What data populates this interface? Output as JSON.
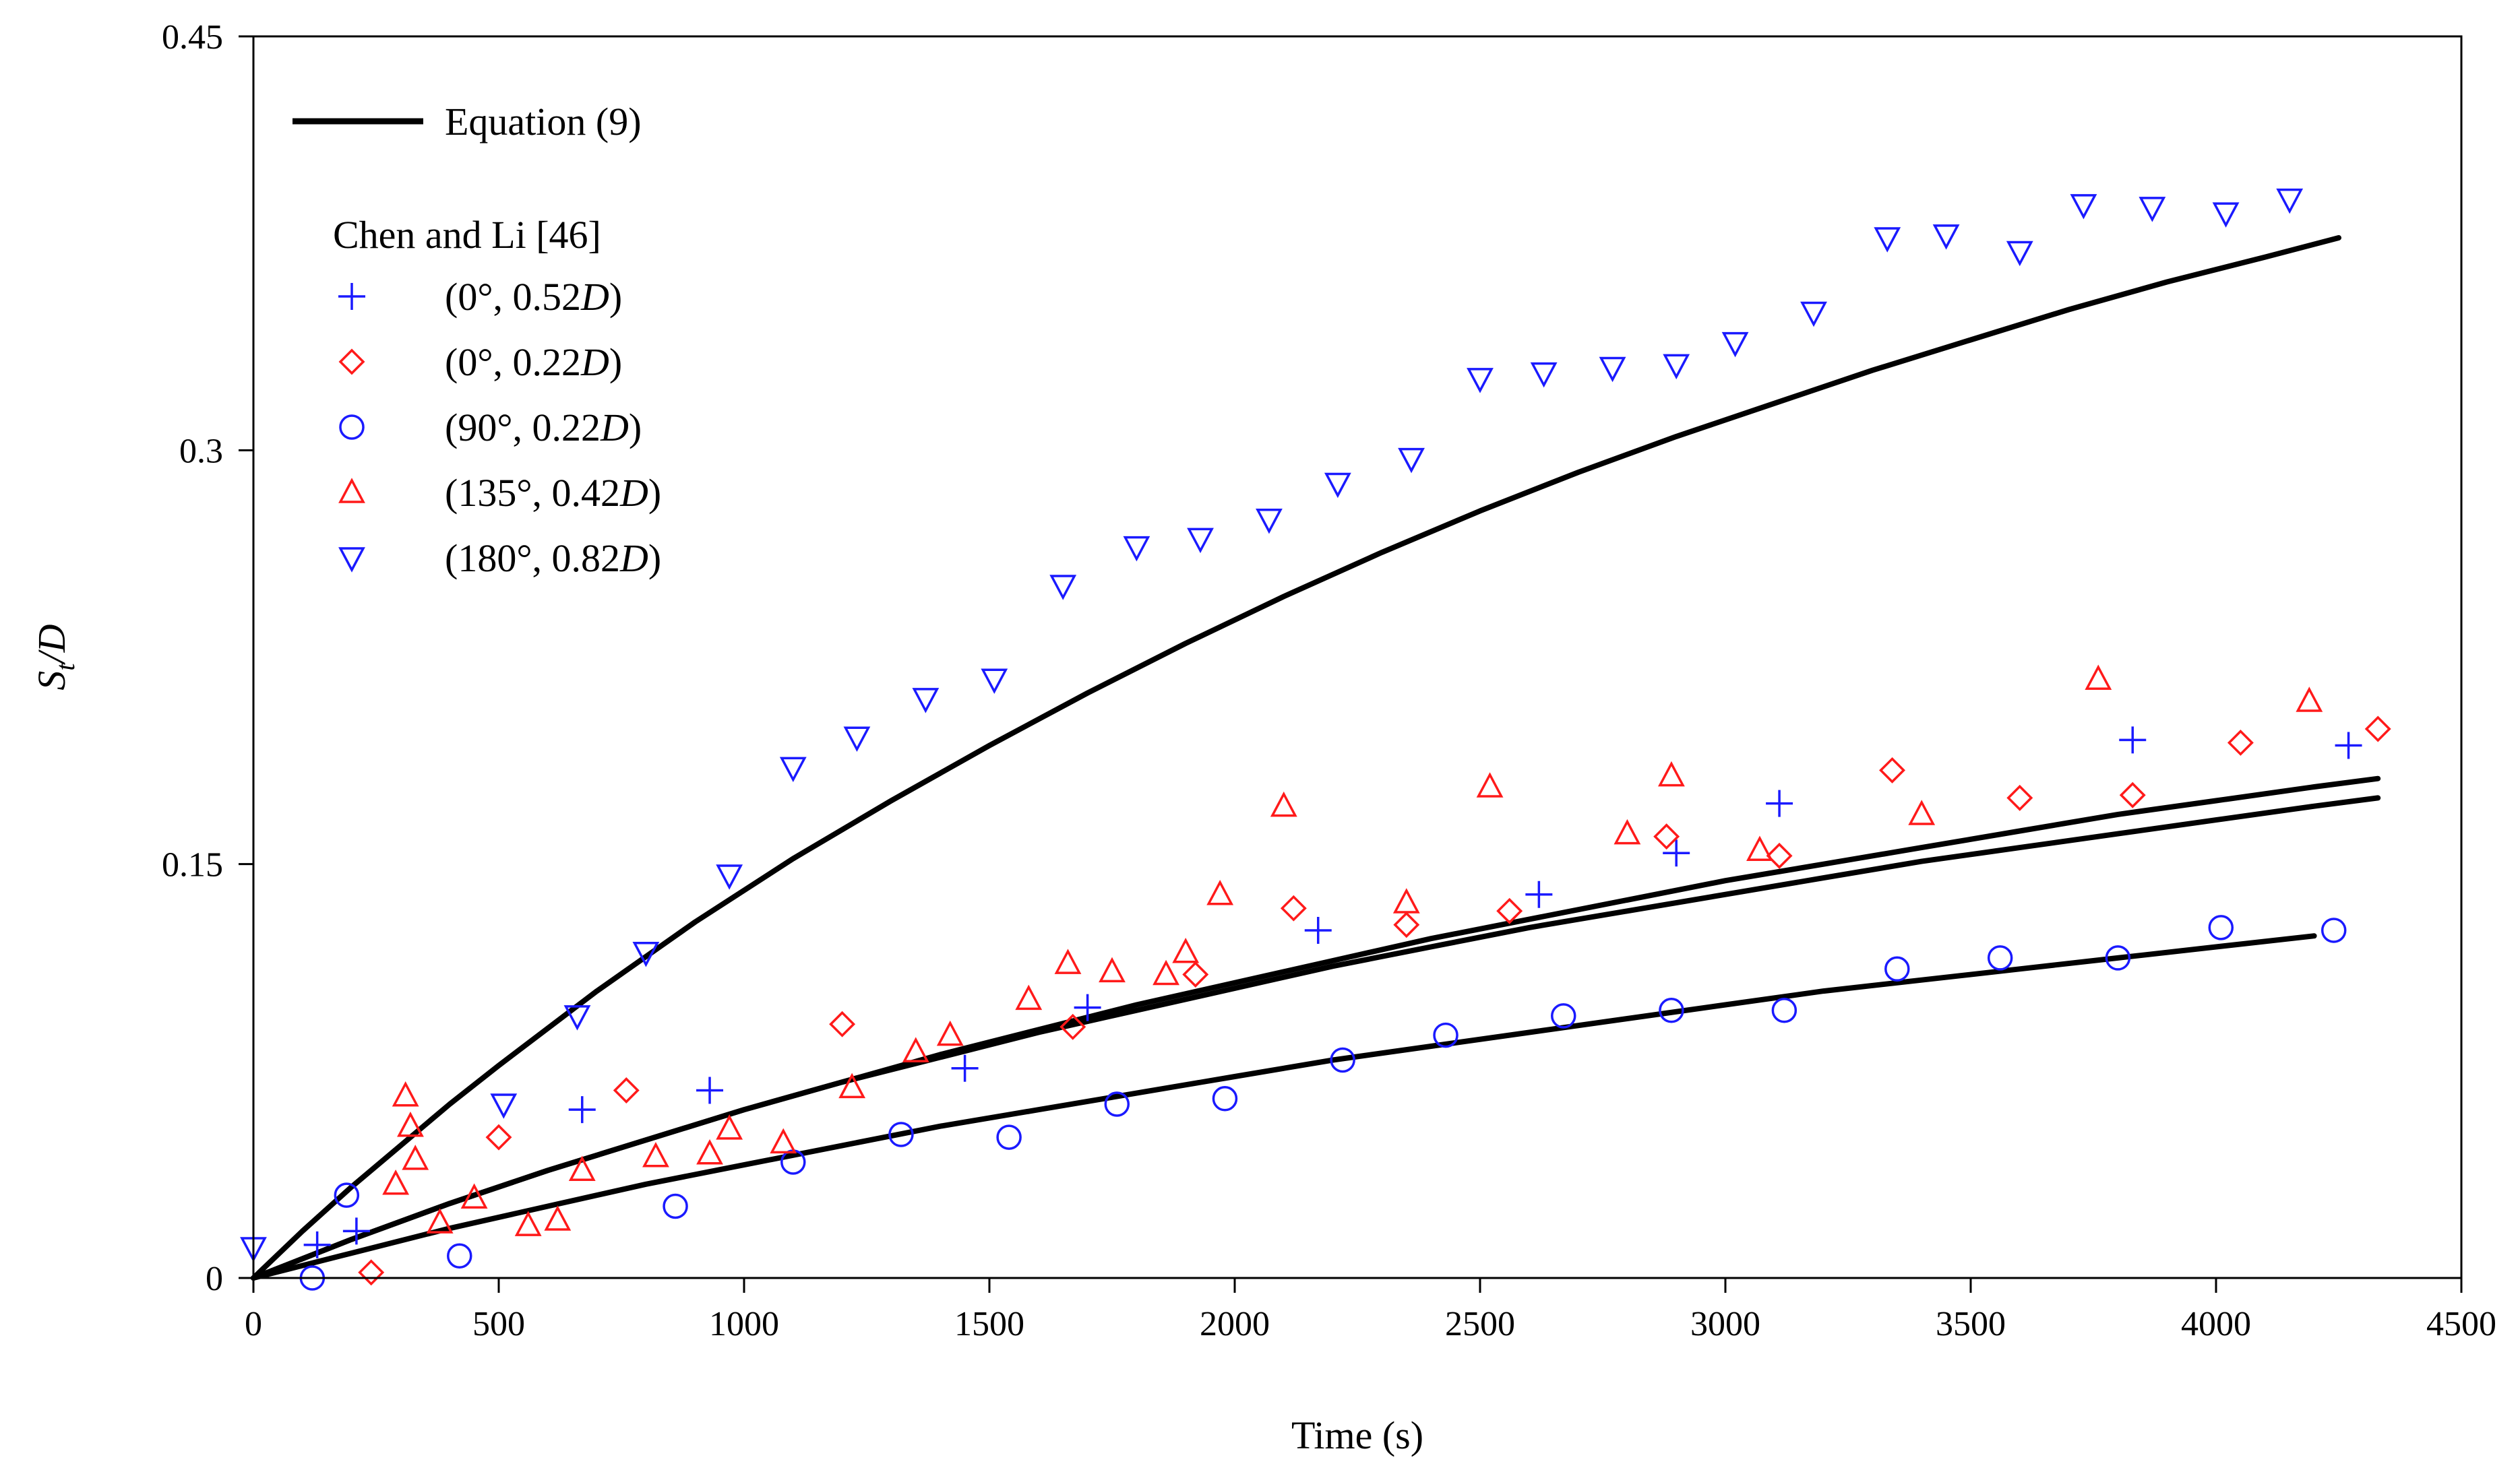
{
  "chart_data": {
    "type": "scatter",
    "title": "",
    "xlabel": "Time (s)",
    "ylabel": {
      "main": "S",
      "sub": "t",
      "tail": "/D"
    },
    "xlim": [
      0,
      4500
    ],
    "ylim": [
      0,
      0.45
    ],
    "xticks": [
      0,
      500,
      1000,
      1500,
      2000,
      2500,
      3000,
      3500,
      4000,
      4500
    ],
    "xtick_labels": [
      "0",
      "500",
      "1000",
      "1500",
      "2000",
      "2500",
      "3000",
      "3500",
      "4000",
      "4500"
    ],
    "yticks": [
      0,
      0.15,
      0.3,
      0.45
    ],
    "ytick_labels": [
      "0",
      "0.15",
      "0.3",
      "0.45"
    ],
    "legend_position": "top-left",
    "line_legend": "Equation (9)",
    "scatter_legend_title": "Chen and Li [46]",
    "colors": {
      "blue": "#1a1aff",
      "red": "#ff1a1a",
      "black": "#000000"
    },
    "lines": [
      {
        "name": "Equation (9) — 180°, 0.82D",
        "x": [
          0,
          100,
          200,
          300,
          400,
          500,
          700,
          900,
          1100,
          1300,
          1500,
          1700,
          1900,
          2100,
          2300,
          2500,
          2700,
          2900,
          3100,
          3300,
          3500,
          3700,
          3900,
          4100,
          4250
        ],
        "y": [
          0,
          0.017,
          0.033,
          0.048,
          0.063,
          0.077,
          0.104,
          0.129,
          0.152,
          0.173,
          0.193,
          0.212,
          0.23,
          0.247,
          0.263,
          0.278,
          0.292,
          0.305,
          0.317,
          0.329,
          0.34,
          0.351,
          0.361,
          0.37,
          0.377
        ]
      },
      {
        "name": "Equation (9) — 0°, 0.52D",
        "x": [
          0,
          200,
          400,
          600,
          800,
          1000,
          1200,
          1400,
          1600,
          1800,
          2000,
          2200,
          2400,
          2600,
          2800,
          3000,
          3200,
          3400,
          3600,
          3800,
          4000,
          4200,
          4330
        ],
        "y": [
          0,
          0.014,
          0.027,
          0.039,
          0.05,
          0.061,
          0.071,
          0.081,
          0.09,
          0.099,
          0.107,
          0.115,
          0.123,
          0.13,
          0.137,
          0.144,
          0.15,
          0.156,
          0.162,
          0.168,
          0.173,
          0.178,
          0.181
        ]
      },
      {
        "name": "Equation (9) — 0°, 0.22D",
        "x": [
          0,
          200,
          400,
          600,
          800,
          1000,
          1200,
          1400,
          1600,
          1800,
          2000,
          2200,
          2400,
          2600,
          2800,
          3000,
          3200,
          3400,
          3600,
          3800,
          4000,
          4200,
          4330
        ],
        "y": [
          0,
          0.014,
          0.027,
          0.039,
          0.05,
          0.061,
          0.071,
          0.08,
          0.089,
          0.097,
          0.105,
          0.113,
          0.12,
          0.127,
          0.133,
          0.139,
          0.145,
          0.151,
          0.156,
          0.161,
          0.166,
          0.171,
          0.174
        ]
      },
      {
        "name": "Equation (9) — 90°, 0.22D",
        "x": [
          0,
          200,
          400,
          600,
          800,
          1000,
          1200,
          1400,
          1600,
          1800,
          2000,
          2200,
          2400,
          2600,
          2800,
          3000,
          3200,
          3400,
          3600,
          3800,
          4000,
          4200
        ],
        "y": [
          0,
          0.009,
          0.018,
          0.026,
          0.034,
          0.041,
          0.048,
          0.055,
          0.061,
          0.067,
          0.073,
          0.079,
          0.084,
          0.089,
          0.094,
          0.099,
          0.104,
          0.108,
          0.112,
          0.116,
          0.12,
          0.124
        ]
      }
    ],
    "series": [
      {
        "name": "(0°, 0.52D)",
        "label": {
          "pre": "(0°, 0.52",
          "italic": "D",
          "post": ")"
        },
        "marker": "plus",
        "color": "#1a1aff",
        "x": [
          130,
          210,
          670,
          930,
          1450,
          1700,
          2170,
          2620,
          2900,
          3110,
          3830,
          4270
        ],
        "y": [
          0.012,
          0.017,
          0.061,
          0.068,
          0.076,
          0.098,
          0.126,
          0.139,
          0.154,
          0.172,
          0.195,
          0.193
        ]
      },
      {
        "name": "(0°, 0.22D)",
        "label": {
          "pre": "(0°, 0.22",
          "italic": "D",
          "post": ")"
        },
        "marker": "diamond",
        "color": "#ff1a1a",
        "x": [
          240,
          500,
          760,
          1200,
          1670,
          1920,
          2120,
          2350,
          2560,
          2880,
          3110,
          3340,
          3600,
          3830,
          4050,
          4330
        ],
        "y": [
          0.002,
          0.051,
          0.068,
          0.092,
          0.091,
          0.11,
          0.134,
          0.128,
          0.133,
          0.16,
          0.153,
          0.184,
          0.174,
          0.175,
          0.194,
          0.199
        ]
      },
      {
        "name": "(90°, 0.22D)",
        "label": {
          "pre": "(90°, 0.22",
          "italic": "D",
          "post": ")"
        },
        "marker": "circle",
        "color": "#1a1aff",
        "x": [
          120,
          190,
          420,
          860,
          1100,
          1320,
          1540,
          1760,
          1980,
          2220,
          2430,
          2670,
          2890,
          3120,
          3350,
          3560,
          3800,
          4010,
          4240
        ],
        "y": [
          0.0,
          0.03,
          0.008,
          0.026,
          0.042,
          0.052,
          0.051,
          0.063,
          0.065,
          0.079,
          0.088,
          0.095,
          0.097,
          0.097,
          0.112,
          0.116,
          0.116,
          0.127,
          0.126
        ]
      },
      {
        "name": "(135°, 0.42D)",
        "label": {
          "pre": "(135°, 0.42",
          "italic": "D",
          "post": ")"
        },
        "marker": "triangle-up",
        "color": "#ff1a1a",
        "x": [
          290,
          310,
          320,
          330,
          380,
          450,
          560,
          620,
          670,
          820,
          930,
          970,
          1080,
          1220,
          1350,
          1420,
          1580,
          1660,
          1750,
          1860,
          1900,
          1970,
          2100,
          2350,
          2520,
          2800,
          2890,
          3070,
          3400,
          3760,
          4190
        ],
        "y": [
          0.034,
          0.066,
          0.055,
          0.043,
          0.02,
          0.029,
          0.019,
          0.021,
          0.039,
          0.044,
          0.045,
          0.054,
          0.049,
          0.069,
          0.082,
          0.088,
          0.101,
          0.114,
          0.111,
          0.11,
          0.118,
          0.139,
          0.171,
          0.136,
          0.178,
          0.161,
          0.182,
          0.155,
          0.168,
          0.217,
          0.209
        ]
      },
      {
        "name": "(180°, 0.82D)",
        "label": {
          "pre": "(180°, 0.82",
          "italic": "D",
          "post": ")"
        },
        "marker": "triangle-down",
        "color": "#1a1aff",
        "x": [
          0,
          510,
          660,
          800,
          970,
          1100,
          1230,
          1370,
          1510,
          1650,
          1800,
          1930,
          2070,
          2210,
          2360,
          2500,
          2630,
          2770,
          2900,
          3020,
          3180,
          3330,
          3450,
          3600,
          3730,
          3870,
          4020,
          4150
        ],
        "y": [
          0.011,
          0.063,
          0.095,
          0.118,
          0.146,
          0.185,
          0.196,
          0.21,
          0.217,
          0.251,
          0.265,
          0.268,
          0.275,
          0.288,
          0.297,
          0.326,
          0.328,
          0.33,
          0.331,
          0.339,
          0.35,
          0.377,
          0.378,
          0.372,
          0.389,
          0.388,
          0.386,
          0.391
        ]
      }
    ]
  }
}
